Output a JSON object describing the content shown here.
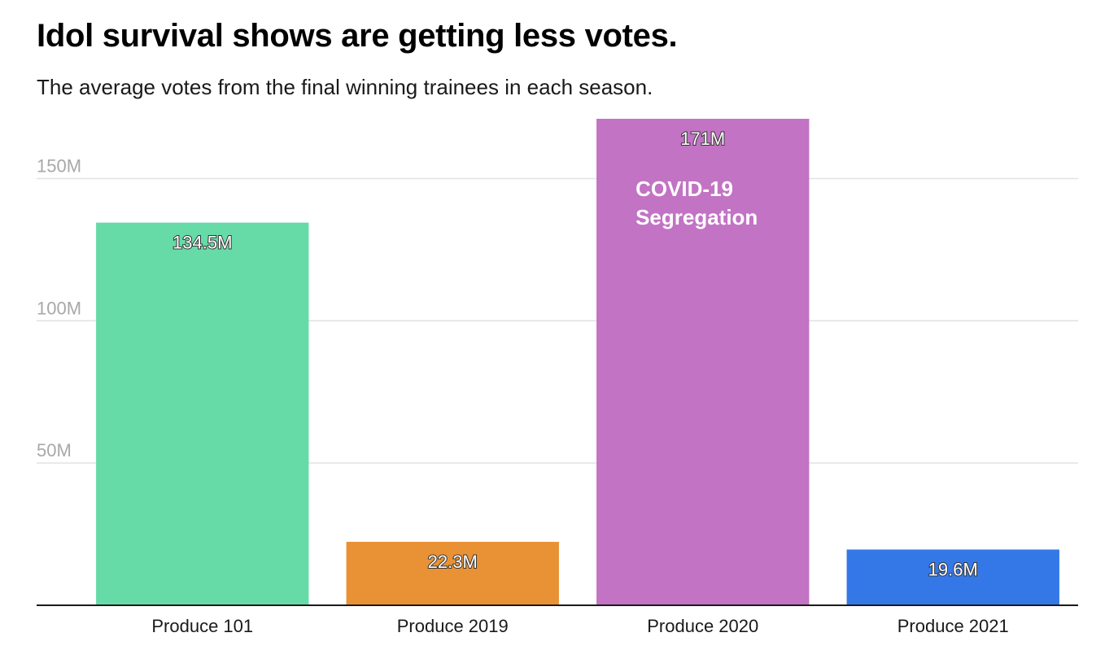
{
  "chart_data": {
    "type": "bar",
    "title": "Idol survival shows are getting less votes.",
    "subtitle": "The average votes from the final winning trainees in each season.",
    "categories": [
      "Produce 101",
      "Produce 2019",
      "Produce 2020",
      "Produce 2021"
    ],
    "values": [
      134.5,
      22.3,
      171,
      19.6
    ],
    "data_labels": [
      "134.5M",
      "22.3M",
      "171M",
      "19.6M"
    ],
    "colors": [
      "#66dba8",
      "#e99235",
      "#c273c4",
      "#3478e8"
    ],
    "yticks": [
      {
        "value": 50,
        "label": "50M"
      },
      {
        "value": 100,
        "label": "100M"
      },
      {
        "value": 150,
        "label": "150M"
      }
    ],
    "ylim": [
      0,
      171
    ],
    "xlabel": "",
    "ylabel": "",
    "grid": true,
    "legend": "none",
    "annotations": [
      {
        "category": "Produce 2020",
        "lines": [
          "COVID-19",
          "Segregation"
        ],
        "color": "#ffffff"
      }
    ]
  }
}
